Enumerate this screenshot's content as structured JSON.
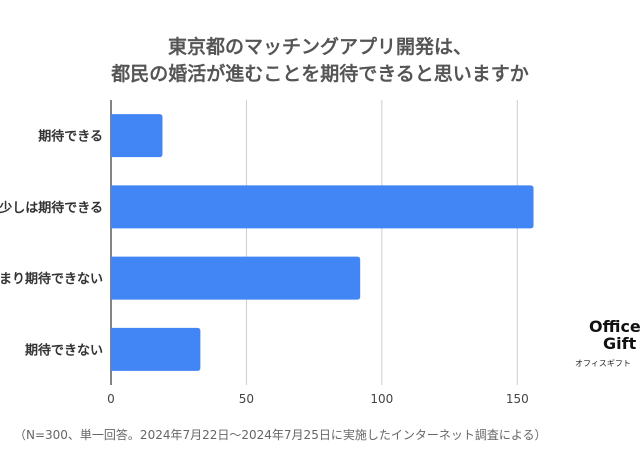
{
  "title_line1": "東京都のマッチングアプリ開発は、",
  "title_line2": "都民の婚活が進むことを期待できると思いますか",
  "footnote": "（N=300、単一回答。2024年7月22日〜2024年7月25日に実施したインターネット調査による）",
  "logo": {
    "word1": "Office",
    "word2": "Gift",
    "tagline": "オフィスギフト"
  },
  "colors": {
    "bar": "#4285f4",
    "grid": "#cccccc",
    "text": "#333333"
  },
  "chart_data": {
    "type": "bar",
    "orientation": "horizontal",
    "categories": [
      "期待できる",
      "少しは期待できる",
      "あまり期待できない",
      "期待できない"
    ],
    "category_labels_visible": [
      "期待できる",
      "少しは期待できる",
      "まり期待できない",
      "期待できない"
    ],
    "values": [
      19,
      156,
      92,
      33
    ],
    "xlim": [
      0,
      175
    ],
    "xticks": [
      0,
      50,
      100,
      150
    ],
    "grid": true,
    "legend": "none"
  }
}
